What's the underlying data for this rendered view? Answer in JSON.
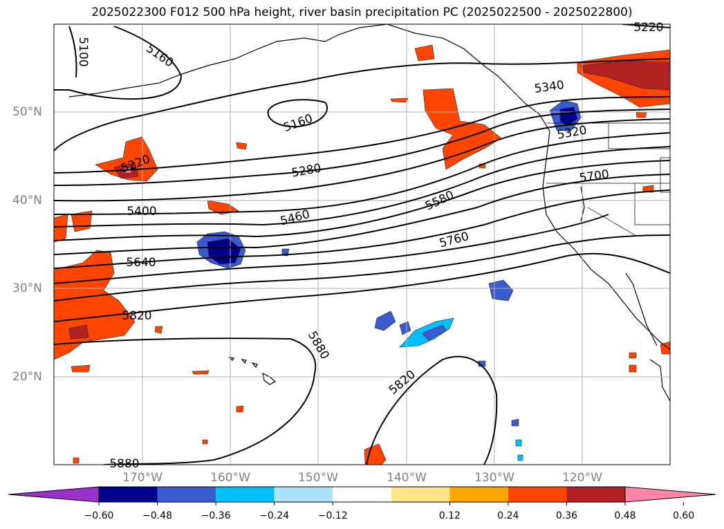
{
  "title": "2025022300 F012 500 hPa height, river basin precipitation PC (2025022500 - 2025022800)",
  "map": {
    "projection": "lat-lon",
    "lat_labels": [
      "50°N",
      "40°N",
      "30°N",
      "20°N"
    ],
    "lon_labels": [
      "170°W",
      "160°W",
      "150°W",
      "140°W",
      "130°W",
      "120°W"
    ],
    "contour_field": "500 hPa height",
    "contour_labels": [
      "5100",
      "5160",
      "5160",
      "5220",
      "5220",
      "5280",
      "5320",
      "5340",
      "5400",
      "5460",
      "5580",
      "5640",
      "5700",
      "5760",
      "5820",
      "5820",
      "5880",
      "5880"
    ],
    "gridlines": true
  },
  "colorbar": {
    "extend": "both",
    "ticks": [
      "−0.60",
      "−0.48",
      "−0.36",
      "−0.24",
      "−0.12",
      "0.12",
      "0.24",
      "0.36",
      "0.48",
      "0.60"
    ],
    "colors": [
      "#9932cc",
      "#00008b",
      "#3a5bcf",
      "#00bfff",
      "#aee3fb",
      "#ffffff",
      "#fde68a",
      "#ffa500",
      "#ff4500",
      "#b22222",
      "#ff85a8"
    ]
  }
}
